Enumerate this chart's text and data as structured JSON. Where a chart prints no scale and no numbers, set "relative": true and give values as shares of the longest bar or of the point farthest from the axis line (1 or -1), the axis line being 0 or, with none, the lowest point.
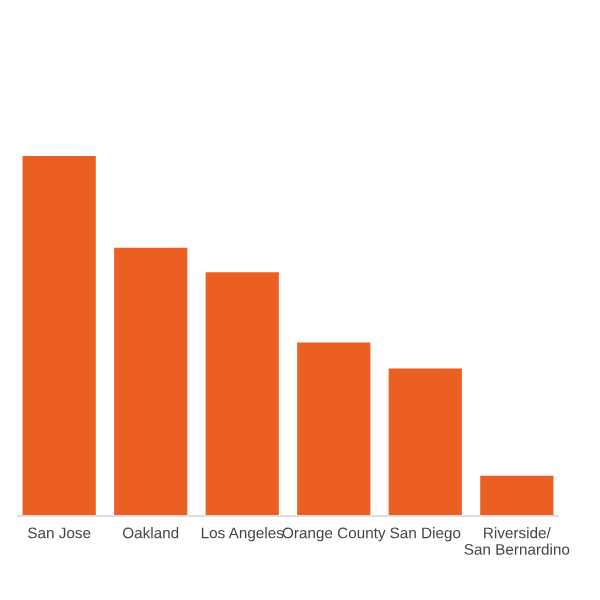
{
  "chart_data": {
    "type": "bar",
    "relative": true,
    "categories": [
      "San Jose",
      "Oakland",
      "Los Angeles",
      "Orange County",
      "San Diego",
      "Riverside/\nSan Bernardino"
    ],
    "values": [
      1,
      0.745,
      0.677,
      0.482,
      0.41,
      0.112
    ],
    "color": "#ec5f22",
    "grid": false
  }
}
